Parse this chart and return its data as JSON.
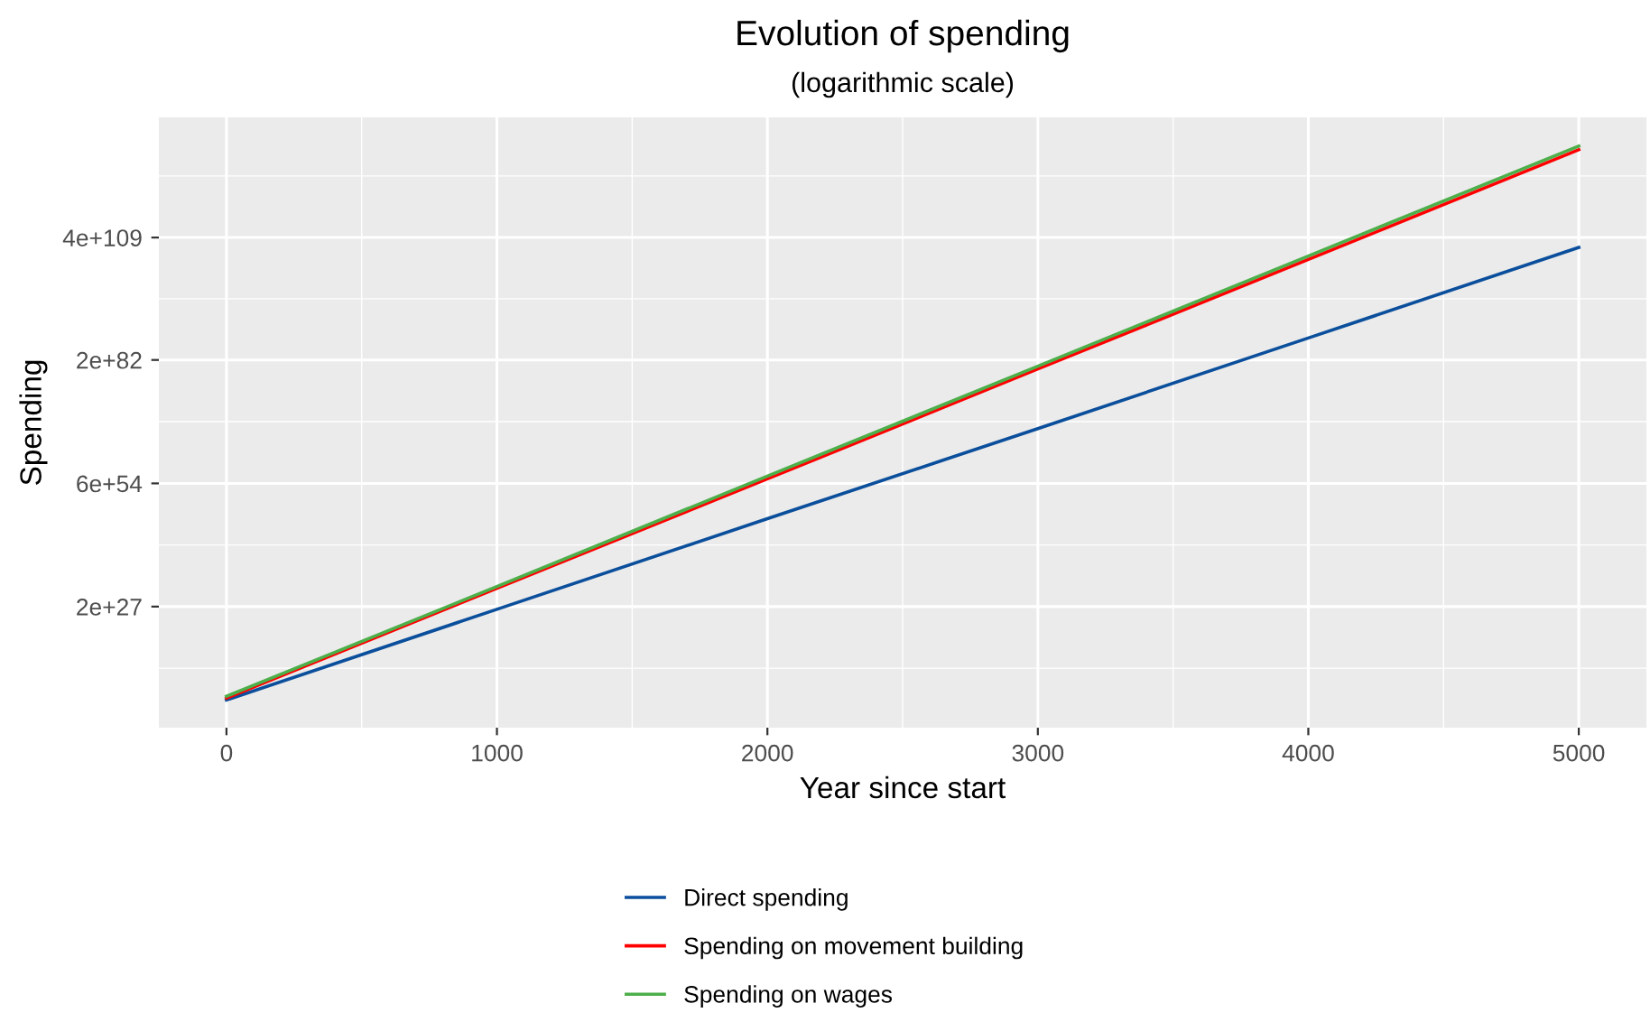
{
  "chart_data": {
    "type": "line",
    "title": "Evolution of spending",
    "subtitle": "(logarithmic scale)",
    "xlabel": "Year since start",
    "ylabel": "Spending",
    "x": [
      0,
      1000,
      2000,
      3000,
      4000,
      5000
    ],
    "series": [
      {
        "name": "Direct spending",
        "color": "#0b4f9c",
        "values": [
          3000000.0,
          5e+26,
          8e+46,
          1e+67,
          1.6e+87,
          2.5e+107
        ]
      },
      {
        "name": "Spending on movement building",
        "color": "#ff0000",
        "values": [
          8000000.0,
          2.5e+31,
          6e+55,
          2e+80,
          5e+104,
          1.6e+129
        ]
      },
      {
        "name": "Spending on wages",
        "color": "#4daf4a",
        "values": [
          20000000.0,
          6e+31,
          2.5e+56,
          8e+80,
          3e+105,
          1e+130
        ]
      }
    ],
    "log": "y",
    "xlim": [
      -250,
      5250
    ],
    "ylim": [
      2,
      2.5e+136
    ],
    "xticks": [
      0,
      1000,
      2000,
      3000,
      4000,
      5000
    ],
    "yticks": [
      {
        "value": 2e+27,
        "label": "2e+27"
      },
      {
        "value": 6e+54,
        "label": "6e+54"
      },
      {
        "value": 2e+82,
        "label": "2e+82"
      },
      {
        "value": 4e+109,
        "label": "4e+109"
      }
    ],
    "grid": true,
    "legend": "bottom",
    "line_style": "solid",
    "marker": "none"
  }
}
